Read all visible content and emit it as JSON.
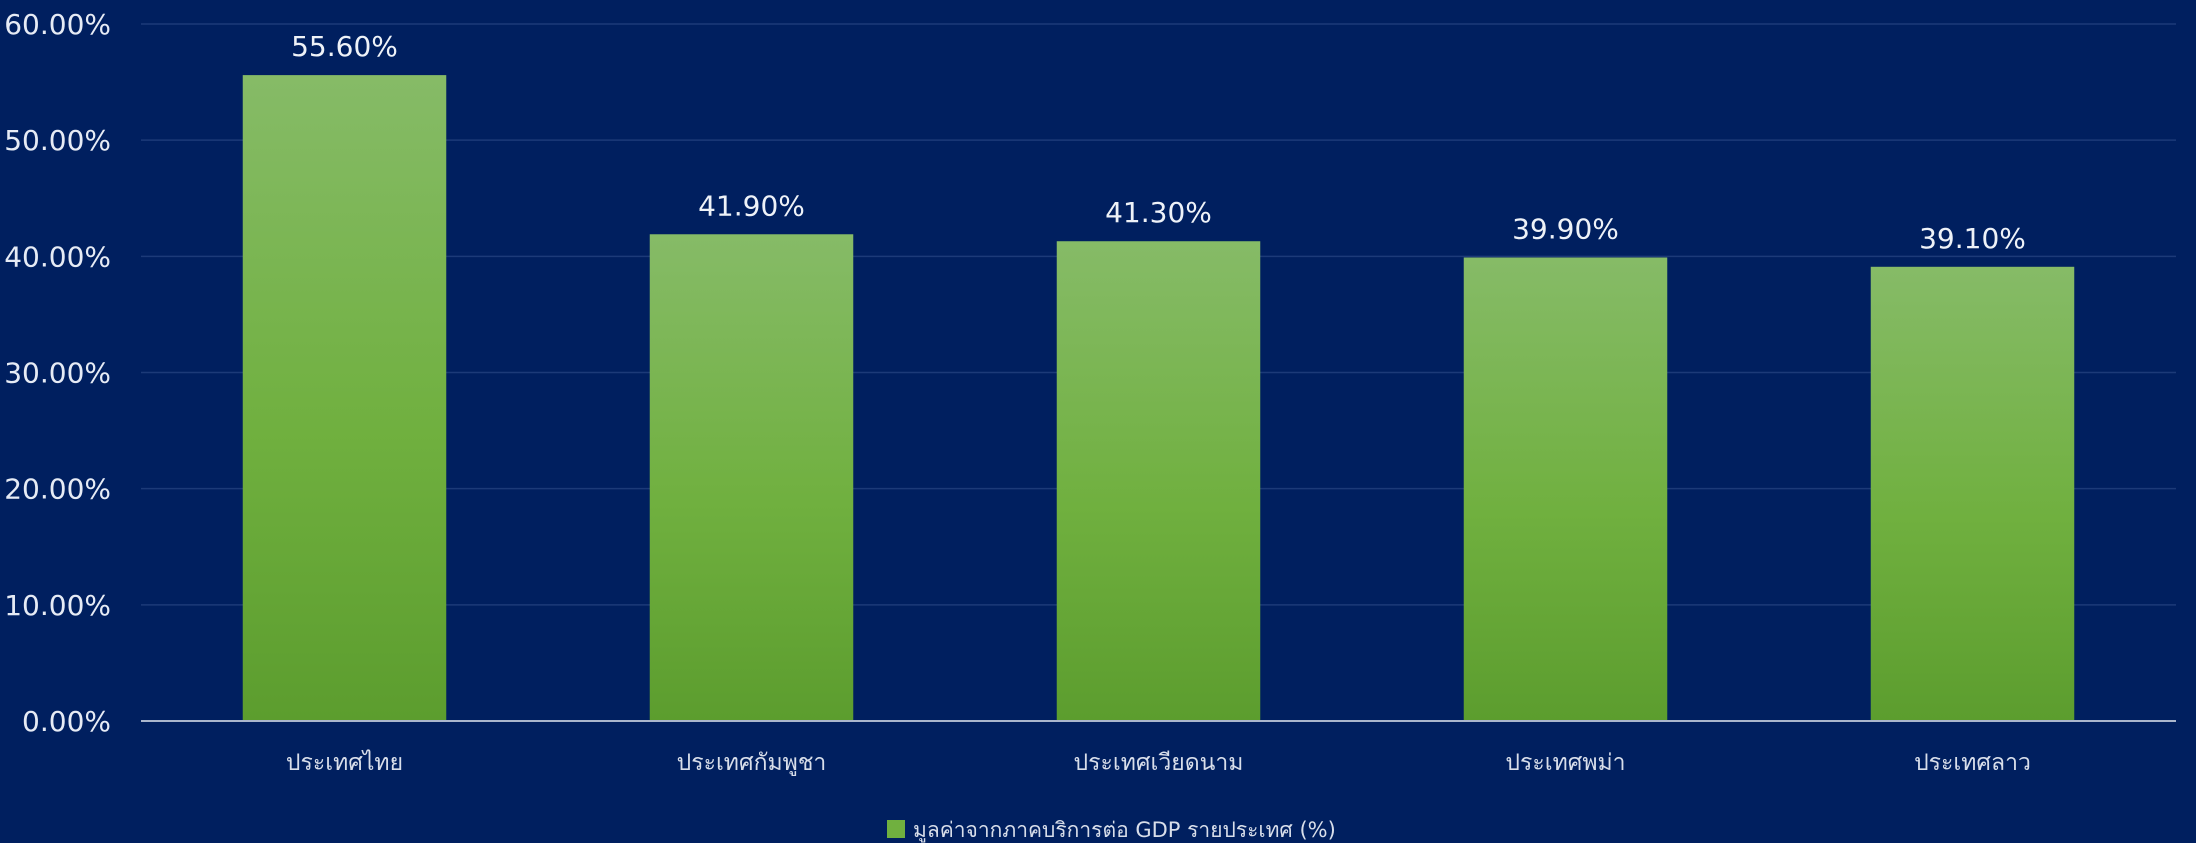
{
  "colors": {
    "background": "#001f5f",
    "bar_top": "#86bb67",
    "bar_bottom": "#5c9d2e",
    "gridline": "#1c3a78",
    "axis": "#aab6cc"
  },
  "legend": {
    "label": "มูลค่าจากภาคบริการต่อ GDP รายประเทศ (%)",
    "placement": "bottom"
  },
  "chart_data": {
    "type": "bar",
    "categories": [
      "ประเทศไทย",
      "ประเทศกัมพูชา",
      "ประเทศเวียดนาม",
      "ประเทศพม่า",
      "ประเทศลาว"
    ],
    "series": [
      {
        "name": "มูลค่าจากภาคบริการต่อ GDP รายประเทศ (%)",
        "values": [
          55.6,
          41.9,
          41.3,
          39.9,
          39.1
        ],
        "labels": [
          "55.60%",
          "41.90%",
          "41.30%",
          "39.90%",
          "39.10%"
        ]
      }
    ],
    "yticks": [
      "0.00%",
      "10.00%",
      "20.00%",
      "30.00%",
      "40.00%",
      "50.00%",
      "60.00%"
    ],
    "ylim": [
      0,
      60
    ],
    "grid": true,
    "legend_position": "bottom"
  }
}
